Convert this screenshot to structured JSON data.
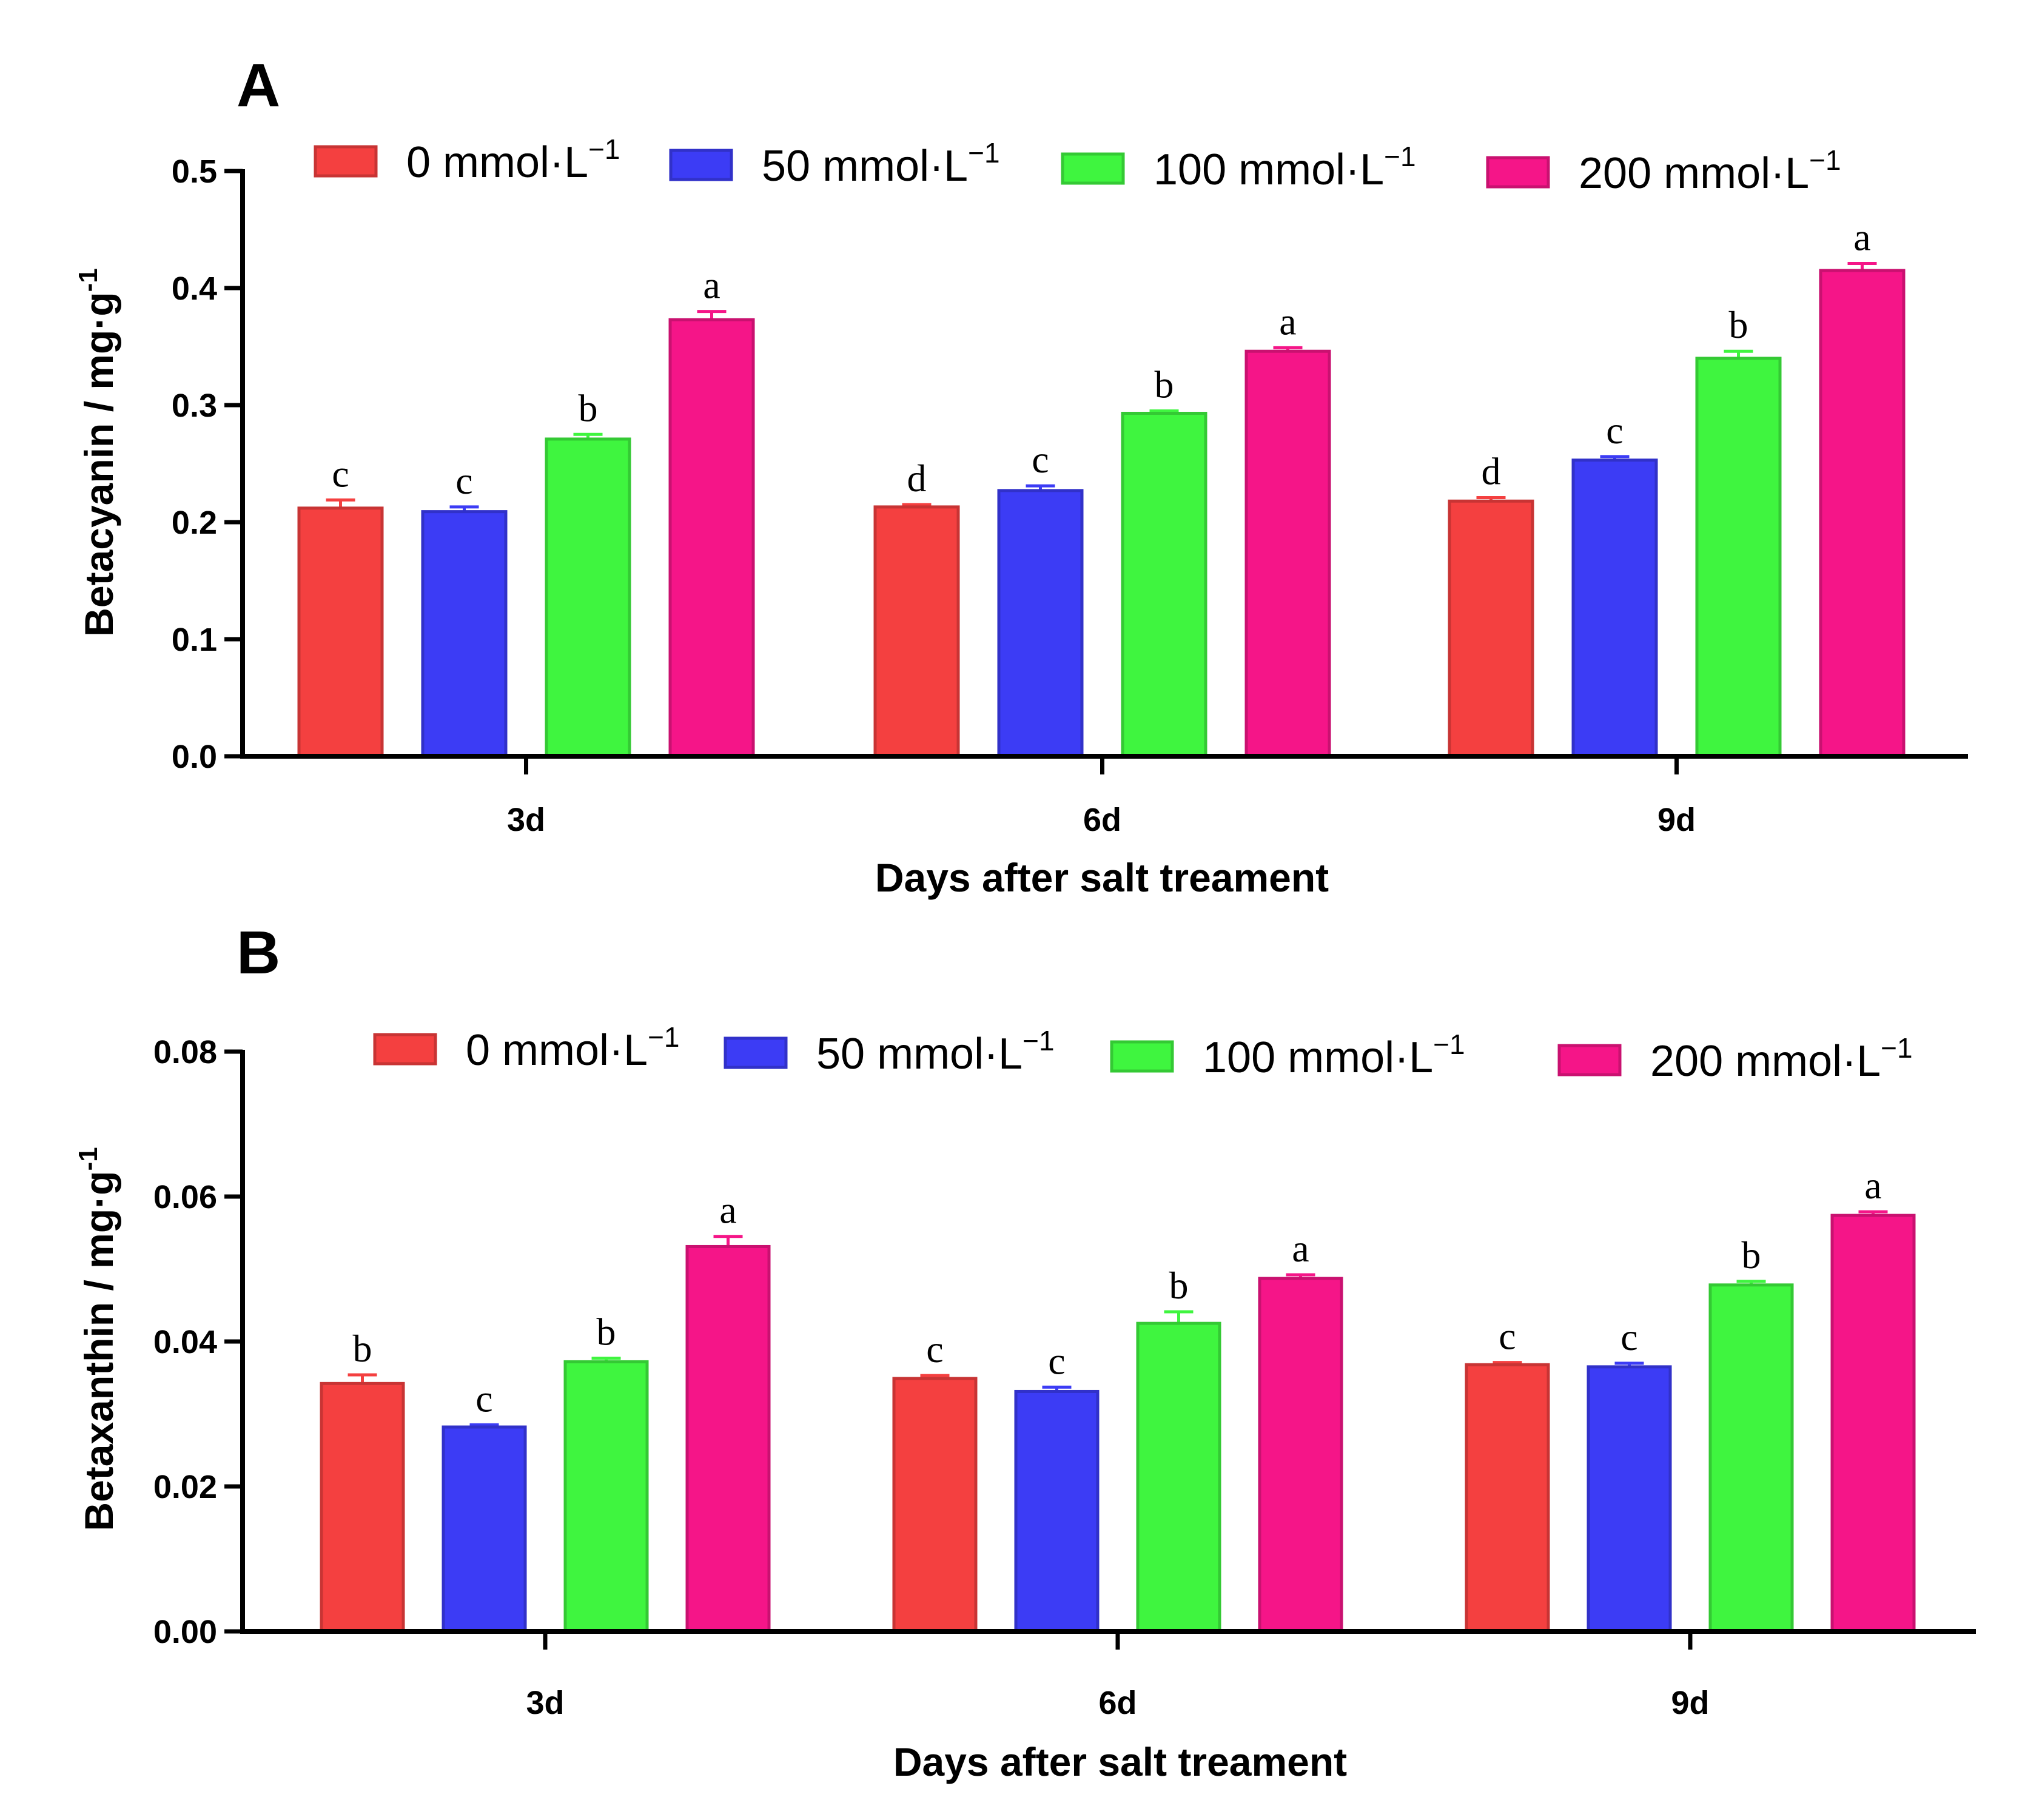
{
  "chart_data": [
    {
      "panel": "A",
      "type": "bar",
      "categories": [
        "3d",
        "6d",
        "9d"
      ],
      "xlabel": "Days after salt treament",
      "ylabel": "Betacyanin / mg·g",
      "ylabel_sup": "-1",
      "ylim": [
        0,
        0.5
      ],
      "yticks": [
        "0.0",
        "0.1",
        "0.2",
        "0.3",
        "0.4",
        "0.5"
      ],
      "legend_position": "top",
      "series": [
        {
          "name": "0 mmol·L",
          "sup": "−1",
          "color": "#f44040",
          "values": [
            0.212,
            0.213,
            0.218
          ],
          "errors": [
            0.007,
            0.002,
            0.003
          ],
          "letters": [
            "c",
            "d",
            "d"
          ]
        },
        {
          "name": "50 mmol·L",
          "sup": "−1",
          "color": "#3c3cf5",
          "values": [
            0.209,
            0.227,
            0.253
          ],
          "errors": [
            0.004,
            0.004,
            0.003
          ],
          "letters": [
            "c",
            "c",
            "c"
          ]
        },
        {
          "name": "100 mmol·L",
          "sup": "−1",
          "color": "#3ff53f",
          "values": [
            0.271,
            0.293,
            0.34
          ],
          "errors": [
            0.004,
            0.002,
            0.006
          ],
          "letters": [
            "b",
            "b",
            "b"
          ]
        },
        {
          "name": "200 mmol·L",
          "sup": "−1",
          "color": "#f51588",
          "values": [
            0.373,
            0.346,
            0.415
          ],
          "errors": [
            0.007,
            0.003,
            0.006
          ],
          "letters": [
            "a",
            "a",
            "a"
          ]
        }
      ]
    },
    {
      "panel": "B",
      "type": "bar",
      "categories": [
        "3d",
        "6d",
        "9d"
      ],
      "xlabel": "Days after salt treament",
      "ylabel": "Betaxanthin / mg·g",
      "ylabel_sup": "-1",
      "ylim": [
        0,
        0.08
      ],
      "yticks": [
        "0.00",
        "0.02",
        "0.04",
        "0.06",
        "0.08"
      ],
      "legend_position": "top",
      "series": [
        {
          "name": "0 mmol·L",
          "sup": "−1",
          "color": "#f44040",
          "values": [
            0.0342,
            0.0349,
            0.0368
          ],
          "errors": [
            0.0012,
            0.0004,
            0.0003
          ],
          "letters": [
            "b",
            "c",
            "c"
          ]
        },
        {
          "name": "50 mmol·L",
          "sup": "−1",
          "color": "#3c3cf5",
          "values": [
            0.0282,
            0.0331,
            0.0365
          ],
          "errors": [
            0.0003,
            0.0006,
            0.0005
          ],
          "letters": [
            "c",
            "c",
            "c"
          ]
        },
        {
          "name": "100 mmol·L",
          "sup": "−1",
          "color": "#3ff53f",
          "values": [
            0.0372,
            0.0425,
            0.0478
          ],
          "errors": [
            0.0005,
            0.0016,
            0.0005
          ],
          "letters": [
            "b",
            "b",
            "b"
          ]
        },
        {
          "name": "200 mmol·L",
          "sup": "−1",
          "color": "#f51588",
          "values": [
            0.0531,
            0.0487,
            0.0574
          ],
          "errors": [
            0.0014,
            0.0005,
            0.0005
          ],
          "letters": [
            "a",
            "a",
            "a"
          ]
        }
      ]
    }
  ]
}
